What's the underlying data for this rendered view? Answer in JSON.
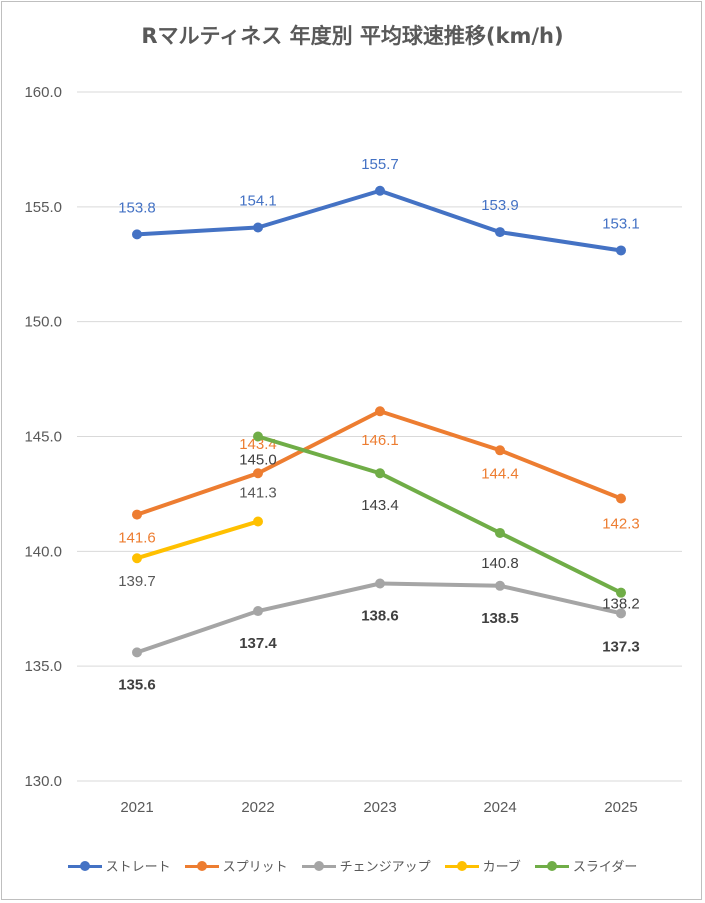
{
  "chart_data": {
    "type": "line",
    "title": "Rマルティネス 年度別 平均球速推移(km/h)",
    "categories": [
      "2021",
      "2022",
      "2023",
      "2024",
      "2025"
    ],
    "ylim": [
      130,
      160
    ],
    "yticks": [
      "130.0",
      "135.0",
      "140.0",
      "145.0",
      "150.0",
      "155.0",
      "160.0"
    ],
    "grid": true,
    "legend_position": "bottom",
    "series": [
      {
        "name": "ストレート",
        "color": "#4472C4",
        "values": [
          153.8,
          154.1,
          155.7,
          153.9,
          153.1
        ],
        "labels": [
          "153.8",
          "154.1",
          "155.7",
          "153.9",
          "153.1"
        ],
        "label_color": "#4472C4",
        "label_weight": "normal"
      },
      {
        "name": "スプリット",
        "color": "#ED7D31",
        "values": [
          141.6,
          143.4,
          146.1,
          144.4,
          142.3
        ],
        "labels": [
          "141.6",
          "143.4",
          "146.1",
          "144.4",
          "142.3"
        ],
        "label_color": "#ED7D31",
        "label_weight": "normal"
      },
      {
        "name": "チェンジアップ",
        "color": "#A5A5A5",
        "values": [
          135.6,
          137.4,
          138.6,
          138.5,
          137.3
        ],
        "labels": [
          "135.6",
          "137.4",
          "138.6",
          "138.5",
          "137.3"
        ],
        "label_color": "#404040",
        "label_weight": "bold"
      },
      {
        "name": "カーブ",
        "color": "#FFC000",
        "values": [
          139.7,
          141.3,
          null,
          null,
          null
        ],
        "labels": [
          "139.7",
          "141.3",
          null,
          null,
          null
        ],
        "label_color": "#595959",
        "label_weight": "normal"
      },
      {
        "name": "スライダー",
        "color": "#70AD47",
        "values": [
          null,
          145.0,
          143.4,
          140.8,
          138.2
        ],
        "labels": [
          null,
          "145.0",
          "143.4",
          "140.8",
          "138.2"
        ],
        "label_color": "#404040",
        "label_weight": "normal"
      }
    ]
  }
}
